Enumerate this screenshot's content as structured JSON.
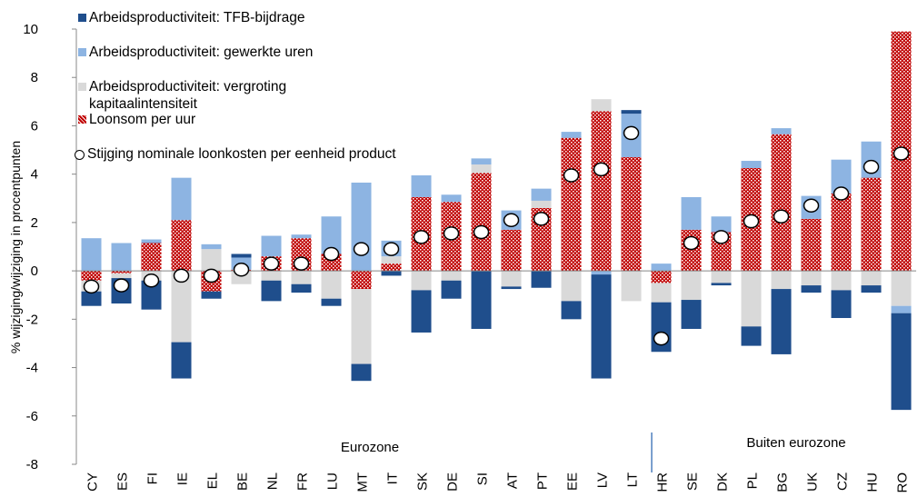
{
  "chart_data": {
    "type": "bar",
    "stacked": true,
    "y_label": "% wijziging/wijziging in procentpunten",
    "categories": [
      "CY",
      "ES",
      "FI",
      "IE",
      "EL",
      "BE",
      "NL",
      "FR",
      "LU",
      "MT",
      "IT",
      "SK",
      "DE",
      "SI",
      "AT",
      "PT",
      "EE",
      "LV",
      "LT",
      "HR",
      "SE",
      "DK",
      "PL",
      "BG",
      "UK",
      "CZ",
      "HU",
      "RO"
    ],
    "series": [
      {
        "name": "Arbeidsproductiviteit: TFB-bijdrage",
        "color": "#1f4e8c",
        "values": [
          -0.6,
          -1.05,
          -1.2,
          -1.5,
          -0.3,
          0.15,
          -0.85,
          -0.35,
          -0.3,
          -0.7,
          -0.2,
          -1.75,
          -0.75,
          -2.4,
          -0.1,
          -0.7,
          -0.75,
          -4.3,
          0.15,
          -2.05,
          -1.2,
          -0.1,
          -0.8,
          -2.7,
          -0.3,
          -1.15,
          -0.3,
          -4.0
        ]
      },
      {
        "name": "Arbeidsproductiviteit: gewerkte uren",
        "color": "#8db4e2",
        "values": [
          1.35,
          1.15,
          0.15,
          1.75,
          0.2,
          0.5,
          0.85,
          0.15,
          1.55,
          3.65,
          0.65,
          0.9,
          0.3,
          0.25,
          0.8,
          0.5,
          0.25,
          -0.15,
          1.8,
          0.3,
          1.35,
          0.65,
          0.3,
          0.25,
          0.95,
          1.4,
          1.5,
          -0.3
        ]
      },
      {
        "name": "Arbeidsproductiviteit: vergroting kapitaalintensiteit",
        "color": "#d9d9d9",
        "values": [
          -0.45,
          -0.2,
          -0.4,
          -2.95,
          0.9,
          -0.55,
          -0.4,
          -0.55,
          -1.15,
          -3.1,
          0.3,
          -0.8,
          -0.4,
          0.35,
          -0.65,
          0.3,
          -1.25,
          0.5,
          -1.25,
          -0.8,
          -1.2,
          -0.5,
          -2.3,
          -0.75,
          -0.6,
          -0.8,
          -0.6,
          -1.45
        ]
      },
      {
        "name": "Loonsom per uur",
        "color": "#c00000",
        "values": [
          -0.4,
          -0.1,
          1.15,
          2.1,
          -0.85,
          0.05,
          0.6,
          1.35,
          0.7,
          -0.75,
          0.3,
          3.05,
          2.85,
          4.05,
          1.7,
          2.6,
          5.5,
          6.6,
          4.7,
          -0.5,
          1.7,
          1.6,
          4.25,
          5.65,
          2.15,
          3.2,
          3.85,
          9.9
        ]
      },
      {
        "name": "Stijging nominale loonkosten per eenheid product",
        "type": "scatter",
        "color": "#ffffff",
        "values": [
          -0.65,
          -0.6,
          -0.4,
          -0.2,
          -0.2,
          0.05,
          0.3,
          0.3,
          0.7,
          0.9,
          0.9,
          1.4,
          1.55,
          1.6,
          2.1,
          2.15,
          3.95,
          4.2,
          5.7,
          -2.8,
          1.15,
          1.4,
          2.05,
          2.25,
          2.7,
          3.2,
          4.3,
          4.85
        ]
      }
    ],
    "annotations": [
      "Eurozone",
      "Buiten eurozone"
    ],
    "ylim": [
      -8,
      10
    ],
    "yticks": [
      -8,
      -6,
      -4,
      -2,
      0,
      2,
      4,
      6,
      8,
      10
    ],
    "grid": false
  }
}
